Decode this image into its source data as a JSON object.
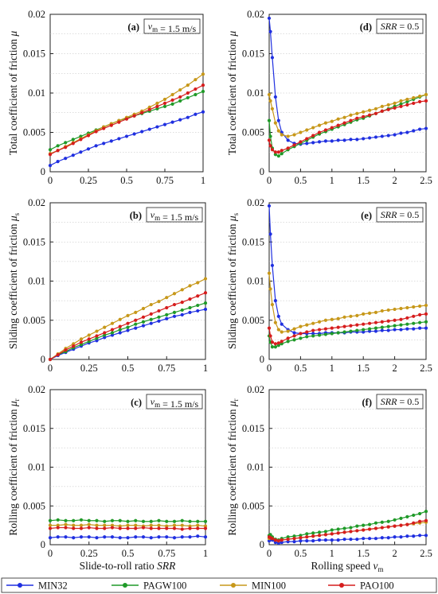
{
  "colors": {
    "MIN32": "#1f2fe0",
    "PAGW100": "#1f9a28",
    "MIN100": "#c7981a",
    "PAO100": "#d61d1d"
  },
  "legend": [
    {
      "name": "MIN32",
      "color": "#1f2fe0"
    },
    {
      "name": "PAGW100",
      "color": "#1f9a28"
    },
    {
      "name": "MIN100",
      "color": "#c7981a"
    },
    {
      "name": "PAO100",
      "color": "#d61d1d"
    }
  ],
  "x_axis_labels": {
    "left": "Slide-to-roll ratio SRR",
    "right": "Rolling speed v_m"
  },
  "chart_data": [
    {
      "id": "a",
      "type": "line",
      "panel_label": "(a)",
      "annotation": "v_m = 1.5 m/s",
      "ylabel": "Total coefficient of friction μ",
      "xlim": [
        0,
        1
      ],
      "ylim": [
        0,
        0.02
      ],
      "xticks": [
        "0",
        "0.25",
        "0.5",
        "0.75",
        "1"
      ],
      "yticks": [
        "0",
        "0.005",
        "0.01",
        "0.015",
        "0.02"
      ],
      "x": [
        0.0,
        0.05,
        0.1,
        0.15,
        0.2,
        0.25,
        0.3,
        0.35,
        0.4,
        0.45,
        0.5,
        0.55,
        0.6,
        0.65,
        0.7,
        0.75,
        0.8,
        0.85,
        0.9,
        0.95,
        1.0
      ],
      "series": [
        {
          "name": "MIN32",
          "values": [
            0.0008,
            0.0013,
            0.0017,
            0.0021,
            0.0025,
            0.0029,
            0.0033,
            0.0036,
            0.0039,
            0.0042,
            0.0045,
            0.0048,
            0.0051,
            0.0054,
            0.0057,
            0.006,
            0.0063,
            0.0066,
            0.0069,
            0.0073,
            0.0076
          ]
        },
        {
          "name": "PAGW100",
          "values": [
            0.0028,
            0.0033,
            0.0037,
            0.0041,
            0.0045,
            0.0049,
            0.0053,
            0.0057,
            0.0061,
            0.0065,
            0.0068,
            0.0071,
            0.0074,
            0.0077,
            0.008,
            0.0083,
            0.0086,
            0.009,
            0.0094,
            0.0098,
            0.0102
          ]
        },
        {
          "name": "MIN100",
          "values": [
            0.0023,
            0.0027,
            0.0032,
            0.0037,
            0.0042,
            0.0047,
            0.0052,
            0.0057,
            0.0061,
            0.0065,
            0.0069,
            0.0073,
            0.0077,
            0.0082,
            0.0087,
            0.0092,
            0.0098,
            0.0104,
            0.011,
            0.0117,
            0.0124
          ]
        },
        {
          "name": "PAO100",
          "values": [
            0.0022,
            0.0027,
            0.0031,
            0.0036,
            0.0041,
            0.0046,
            0.0051,
            0.0055,
            0.0059,
            0.0063,
            0.0067,
            0.0071,
            0.0075,
            0.0079,
            0.0083,
            0.0087,
            0.0091,
            0.0095,
            0.01,
            0.0105,
            0.011
          ]
        }
      ]
    },
    {
      "id": "d",
      "type": "line",
      "panel_label": "(d)",
      "annotation": "SRR = 0.5",
      "ylabel": "Total coefficient of friction μ",
      "xlim": [
        0,
        2.5
      ],
      "ylim": [
        0,
        0.02
      ],
      "xticks": [
        "0",
        "0.5",
        "1",
        "1.5",
        "2",
        "2.5"
      ],
      "yticks": [
        "0",
        "0.005",
        "0.01",
        "0.015",
        "0.02"
      ],
      "x": [
        0.0,
        0.02,
        0.05,
        0.1,
        0.15,
        0.2,
        0.3,
        0.4,
        0.5,
        0.6,
        0.7,
        0.8,
        0.9,
        1.0,
        1.1,
        1.2,
        1.3,
        1.4,
        1.5,
        1.6,
        1.7,
        1.8,
        1.9,
        2.0,
        2.1,
        2.2,
        2.3,
        2.4,
        2.5
      ],
      "series": [
        {
          "name": "MIN32",
          "values": [
            0.0195,
            0.0178,
            0.0145,
            0.0095,
            0.0065,
            0.005,
            0.004,
            0.0036,
            0.0035,
            0.0036,
            0.0037,
            0.0038,
            0.0039,
            0.0039,
            0.004,
            0.004,
            0.0041,
            0.0041,
            0.0042,
            0.0043,
            0.0044,
            0.0045,
            0.0046,
            0.0047,
            0.0049,
            0.005,
            0.0052,
            0.0054,
            0.0055
          ]
        },
        {
          "name": "PAGW100",
          "values": [
            0.0065,
            0.0045,
            0.003,
            0.0022,
            0.002,
            0.0023,
            0.0028,
            0.0032,
            0.0036,
            0.004,
            0.0044,
            0.0048,
            0.0051,
            0.0054,
            0.0057,
            0.006,
            0.0063,
            0.0066,
            0.0068,
            0.0071,
            0.0074,
            0.0077,
            0.008,
            0.0083,
            0.0086,
            0.0089,
            0.0092,
            0.0095,
            0.0098
          ]
        },
        {
          "name": "MIN100",
          "values": [
            0.0098,
            0.009,
            0.008,
            0.0062,
            0.0052,
            0.0047,
            0.0045,
            0.0047,
            0.005,
            0.0053,
            0.0056,
            0.0059,
            0.0062,
            0.0064,
            0.0067,
            0.0069,
            0.0072,
            0.0074,
            0.0076,
            0.0078,
            0.008,
            0.0083,
            0.0085,
            0.0087,
            0.009,
            0.0092,
            0.0094,
            0.0096,
            0.0098
          ]
        },
        {
          "name": "PAO100",
          "values": [
            0.004,
            0.0033,
            0.0028,
            0.0025,
            0.0025,
            0.0027,
            0.003,
            0.0034,
            0.0038,
            0.0042,
            0.0046,
            0.005,
            0.0053,
            0.0056,
            0.0059,
            0.0062,
            0.0065,
            0.0068,
            0.007,
            0.0072,
            0.0074,
            0.0077,
            0.0079,
            0.0081,
            0.0083,
            0.0085,
            0.0087,
            0.0089,
            0.009
          ]
        }
      ]
    },
    {
      "id": "b",
      "type": "line",
      "panel_label": "(b)",
      "annotation": "v_m = 1.5 m/s",
      "ylabel": "Sliding coefficient of friction μ_s",
      "xlim": [
        0,
        1
      ],
      "ylim": [
        0,
        0.02
      ],
      "xticks": [
        "0",
        "0.25",
        "0.5",
        "0.75",
        "1"
      ],
      "yticks": [
        "0",
        "0.005",
        "0.01",
        "0.015",
        "0.02"
      ],
      "x": [
        0.0,
        0.05,
        0.1,
        0.15,
        0.2,
        0.25,
        0.3,
        0.35,
        0.4,
        0.45,
        0.5,
        0.55,
        0.6,
        0.65,
        0.7,
        0.75,
        0.8,
        0.85,
        0.9,
        0.95,
        1.0
      ],
      "series": [
        {
          "name": "MIN32",
          "values": [
            0.0,
            0.0005,
            0.0009,
            0.0013,
            0.0017,
            0.0021,
            0.0024,
            0.0028,
            0.0031,
            0.0034,
            0.0037,
            0.004,
            0.0043,
            0.0046,
            0.0049,
            0.0052,
            0.0055,
            0.0057,
            0.006,
            0.0062,
            0.0064
          ]
        },
        {
          "name": "PAGW100",
          "values": [
            0.0,
            0.0006,
            0.001,
            0.0015,
            0.0019,
            0.0023,
            0.0027,
            0.0031,
            0.0034,
            0.0038,
            0.0041,
            0.0045,
            0.0048,
            0.0051,
            0.0054,
            0.0057,
            0.006,
            0.0063,
            0.0066,
            0.0069,
            0.0072
          ]
        },
        {
          "name": "MIN100",
          "values": [
            0.0,
            0.0007,
            0.0014,
            0.002,
            0.0026,
            0.0031,
            0.0036,
            0.0041,
            0.0046,
            0.0051,
            0.0056,
            0.006,
            0.0065,
            0.007,
            0.0074,
            0.0079,
            0.0084,
            0.0089,
            0.0094,
            0.0098,
            0.0103
          ]
        },
        {
          "name": "PAO100",
          "values": [
            0.0,
            0.0006,
            0.0012,
            0.0017,
            0.0022,
            0.0026,
            0.003,
            0.0034,
            0.0038,
            0.0042,
            0.0046,
            0.005,
            0.0054,
            0.0058,
            0.0062,
            0.0066,
            0.007,
            0.0073,
            0.0077,
            0.0081,
            0.0085
          ]
        }
      ]
    },
    {
      "id": "e",
      "type": "line",
      "panel_label": "(e)",
      "annotation": "SRR = 0.5",
      "ylabel": "Sliding coefficient of friction μ_s",
      "xlim": [
        0,
        2.5
      ],
      "ylim": [
        0,
        0.02
      ],
      "xticks": [
        "0",
        "0.5",
        "1",
        "1.5",
        "2",
        "2.5"
      ],
      "yticks": [
        "0",
        "0.005",
        "0.01",
        "0.015",
        "0.02"
      ],
      "x": [
        0.0,
        0.02,
        0.05,
        0.1,
        0.15,
        0.2,
        0.3,
        0.4,
        0.5,
        0.6,
        0.7,
        0.8,
        0.9,
        1.0,
        1.1,
        1.2,
        1.3,
        1.4,
        1.5,
        1.6,
        1.7,
        1.8,
        1.9,
        2.0,
        2.1,
        2.2,
        2.3,
        2.4,
        2.5
      ],
      "series": [
        {
          "name": "MIN32",
          "values": [
            0.0196,
            0.016,
            0.012,
            0.0075,
            0.0055,
            0.0045,
            0.0038,
            0.0034,
            0.0033,
            0.0033,
            0.0033,
            0.0033,
            0.0034,
            0.0034,
            0.0034,
            0.0034,
            0.0035,
            0.0035,
            0.0035,
            0.0036,
            0.0036,
            0.0037,
            0.0037,
            0.0038,
            0.0038,
            0.0039,
            0.0039,
            0.004,
            0.004
          ]
        },
        {
          "name": "PAGW100",
          "values": [
            0.003,
            0.0022,
            0.0016,
            0.0016,
            0.0018,
            0.002,
            0.0023,
            0.0025,
            0.0027,
            0.0029,
            0.003,
            0.0031,
            0.0032,
            0.0033,
            0.0034,
            0.0035,
            0.0036,
            0.0037,
            0.0038,
            0.0039,
            0.004,
            0.0041,
            0.0042,
            0.0043,
            0.0044,
            0.0045,
            0.0046,
            0.0047,
            0.0048
          ]
        },
        {
          "name": "MIN100",
          "values": [
            0.011,
            0.009,
            0.007,
            0.0047,
            0.0038,
            0.0035,
            0.0036,
            0.0039,
            0.0042,
            0.0044,
            0.0046,
            0.0048,
            0.005,
            0.0051,
            0.0052,
            0.0054,
            0.0055,
            0.0056,
            0.0058,
            0.0059,
            0.006,
            0.0062,
            0.0063,
            0.0064,
            0.0065,
            0.0066,
            0.0067,
            0.0068,
            0.0069
          ]
        },
        {
          "name": "PAO100",
          "values": [
            0.004,
            0.003,
            0.0022,
            0.002,
            0.0021,
            0.0023,
            0.0027,
            0.003,
            0.0033,
            0.0035,
            0.0037,
            0.0038,
            0.0039,
            0.004,
            0.0041,
            0.0042,
            0.0043,
            0.0044,
            0.0045,
            0.0046,
            0.0047,
            0.0048,
            0.0049,
            0.005,
            0.0051,
            0.0053,
            0.0055,
            0.0057,
            0.0058
          ]
        }
      ]
    },
    {
      "id": "c",
      "type": "line",
      "panel_label": "(c)",
      "annotation": "v_m = 1.5 m/s",
      "ylabel": "Rolling coefficient of friction μ_r",
      "xlim": [
        0,
        1
      ],
      "ylim": [
        0,
        0.02
      ],
      "xticks": [
        "0",
        "0.25",
        "0.5",
        "0.75",
        "1"
      ],
      "yticks": [
        "0",
        "0.005",
        "0.01",
        "0.015",
        "0.02"
      ],
      "x": [
        0.0,
        0.05,
        0.1,
        0.15,
        0.2,
        0.25,
        0.3,
        0.35,
        0.4,
        0.45,
        0.5,
        0.55,
        0.6,
        0.65,
        0.7,
        0.75,
        0.8,
        0.85,
        0.9,
        0.95,
        1.0
      ],
      "series": [
        {
          "name": "MIN32",
          "values": [
            0.0009,
            0.001,
            0.001,
            0.0009,
            0.001,
            0.001,
            0.0009,
            0.001,
            0.001,
            0.0009,
            0.0009,
            0.001,
            0.001,
            0.0009,
            0.001,
            0.001,
            0.0009,
            0.001,
            0.001,
            0.0011,
            0.001
          ]
        },
        {
          "name": "PAGW100",
          "values": [
            0.0031,
            0.0032,
            0.0031,
            0.0031,
            0.0032,
            0.0031,
            0.0031,
            0.003,
            0.0031,
            0.0031,
            0.003,
            0.0031,
            0.003,
            0.003,
            0.0031,
            0.003,
            0.003,
            0.0031,
            0.003,
            0.003,
            0.003
          ]
        },
        {
          "name": "MIN100",
          "values": [
            0.0025,
            0.0025,
            0.0026,
            0.0025,
            0.0025,
            0.0026,
            0.0025,
            0.0025,
            0.0025,
            0.0024,
            0.0025,
            0.0025,
            0.0024,
            0.0025,
            0.0025,
            0.0024,
            0.0025,
            0.0025,
            0.0024,
            0.0025,
            0.0024
          ]
        },
        {
          "name": "PAO100",
          "values": [
            0.0021,
            0.0022,
            0.0022,
            0.0021,
            0.0021,
            0.0022,
            0.0021,
            0.0021,
            0.0022,
            0.0021,
            0.0021,
            0.0021,
            0.0022,
            0.0021,
            0.0021,
            0.0021,
            0.0021,
            0.002,
            0.0021,
            0.0021,
            0.0021
          ]
        }
      ]
    },
    {
      "id": "f",
      "type": "line",
      "panel_label": "(f)",
      "annotation": "SRR = 0.5",
      "ylabel": "Rolling coefficient of friction μ_r",
      "xlim": [
        0,
        2.5
      ],
      "ylim": [
        0,
        0.02
      ],
      "xticks": [
        "0",
        "0.5",
        "1",
        "1.5",
        "2",
        "2.5"
      ],
      "yticks": [
        "0",
        "0.005",
        "0.01",
        "0.015",
        "0.02"
      ],
      "x": [
        0.0,
        0.02,
        0.05,
        0.1,
        0.15,
        0.2,
        0.3,
        0.4,
        0.5,
        0.6,
        0.7,
        0.8,
        0.9,
        1.0,
        1.1,
        1.2,
        1.3,
        1.4,
        1.5,
        1.6,
        1.7,
        1.8,
        1.9,
        2.0,
        2.1,
        2.2,
        2.3,
        2.4,
        2.5
      ],
      "series": [
        {
          "name": "MIN32",
          "values": [
            0.0005,
            0.0008,
            0.0006,
            0.0003,
            0.0002,
            0.0003,
            0.0004,
            0.0004,
            0.0005,
            0.0005,
            0.0005,
            0.0006,
            0.0006,
            0.0006,
            0.0006,
            0.0007,
            0.0007,
            0.0007,
            0.0008,
            0.0008,
            0.0008,
            0.0009,
            0.0009,
            0.001,
            0.001,
            0.0011,
            0.0011,
            0.0012,
            0.0012
          ]
        },
        {
          "name": "PAGW100",
          "values": [
            0.0012,
            0.0013,
            0.001,
            0.0007,
            0.0006,
            0.0008,
            0.001,
            0.0011,
            0.0012,
            0.0014,
            0.0015,
            0.0016,
            0.0017,
            0.0019,
            0.002,
            0.0021,
            0.0022,
            0.0024,
            0.0025,
            0.0026,
            0.0028,
            0.0029,
            0.003,
            0.0032,
            0.0034,
            0.0036,
            0.0038,
            0.004,
            0.0043
          ]
        },
        {
          "name": "MIN100",
          "values": [
            0.0008,
            0.0009,
            0.0008,
            0.0006,
            0.0005,
            0.0006,
            0.0007,
            0.0008,
            0.0009,
            0.001,
            0.0011,
            0.0012,
            0.0013,
            0.0014,
            0.0015,
            0.0016,
            0.0017,
            0.0018,
            0.0019,
            0.002,
            0.0021,
            0.0022,
            0.0023,
            0.0024,
            0.0025,
            0.0026,
            0.0027,
            0.0028,
            0.0029
          ]
        },
        {
          "name": "PAO100",
          "values": [
            0.001,
            0.0009,
            0.0008,
            0.0006,
            0.0005,
            0.0006,
            0.0007,
            0.0008,
            0.0009,
            0.001,
            0.0011,
            0.0012,
            0.0013,
            0.0014,
            0.0015,
            0.0016,
            0.0017,
            0.0018,
            0.0019,
            0.002,
            0.0021,
            0.0022,
            0.0023,
            0.0024,
            0.0025,
            0.0026,
            0.0028,
            0.003,
            0.0031
          ]
        }
      ]
    }
  ]
}
